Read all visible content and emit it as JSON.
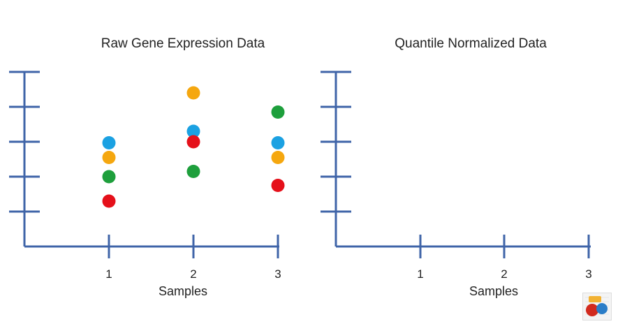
{
  "chart_data": [
    {
      "type": "scatter",
      "title": "Raw Gene Expression Data",
      "xlabel": "Samples",
      "ylabel": "",
      "categories": [
        "1",
        "2",
        "3"
      ],
      "ylim": [
        0,
        5
      ],
      "y_ticks": [
        1,
        2,
        3,
        4,
        5
      ],
      "series": [
        {
          "color": "#F5A70F",
          "values": [
            2.55,
            4.4,
            2.55
          ]
        },
        {
          "color": "#1BA1E2",
          "values": [
            2.97,
            3.3,
            2.97
          ]
        },
        {
          "color": "#1E9F3C",
          "values": [
            2.0,
            2.15,
            3.85
          ]
        },
        {
          "color": "#E5101A",
          "values": [
            1.3,
            3.0,
            1.75
          ]
        }
      ]
    },
    {
      "type": "scatter",
      "title": "Quantile Normalized Data",
      "xlabel": "Samples",
      "ylabel": "",
      "categories": [
        "1",
        "2",
        "3"
      ],
      "ylim": [
        0,
        5
      ],
      "y_ticks": [
        1,
        2,
        3,
        4,
        5
      ],
      "series": []
    }
  ],
  "style": {
    "axis_color": "#3F64A8",
    "logo_colors": [
      "#D22A1E",
      "#2A7DC8",
      "#F2B233"
    ]
  }
}
